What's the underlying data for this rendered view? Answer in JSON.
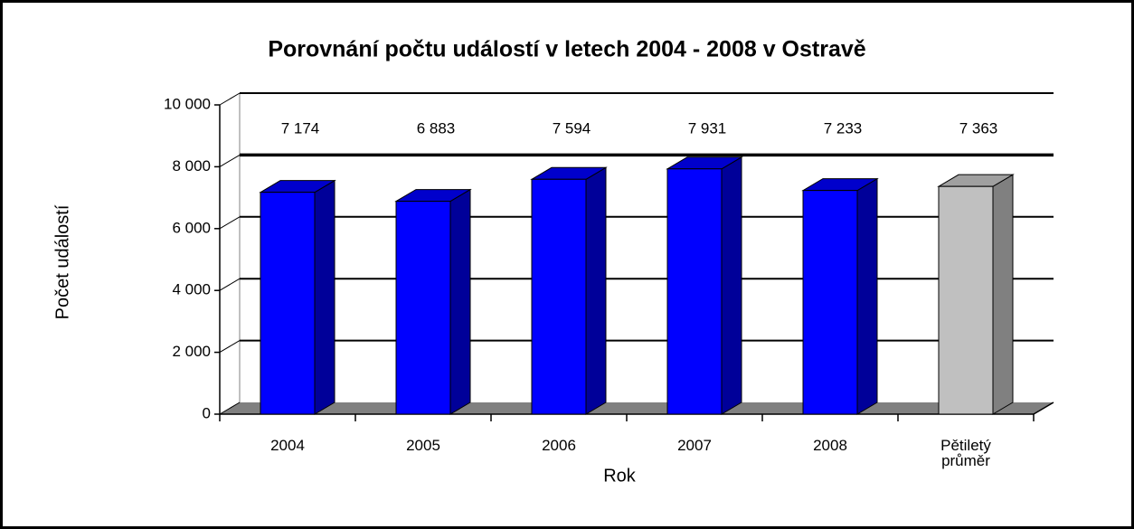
{
  "chart_data": {
    "type": "bar3d",
    "title": "Porovnání počtu událostí v letech 2004 - 2008 v Ostravě",
    "x_label": "Rok",
    "y_label": "Počet událostí",
    "categories": [
      "2004",
      "2005",
      "2006",
      "2007",
      "2008",
      "Pětiletý průměr"
    ],
    "values": [
      7174,
      6883,
      7594,
      7931,
      7233,
      7363
    ],
    "value_labels": [
      "7 174",
      "6 883",
      "7 594",
      "7 931",
      "7 233",
      "7 363"
    ],
    "colors": [
      "#0000ff",
      "#0000ff",
      "#0000ff",
      "#0000ff",
      "#0000ff",
      "#c0c0c0"
    ],
    "ylim": [
      0,
      10000
    ],
    "yticks": [
      0,
      {
        "value": 2000,
        "label": "2 000"
      },
      {
        "value": 4000,
        "label": "4 000"
      },
      {
        "value": 6000,
        "label": "6 000"
      },
      {
        "value": 8000,
        "label": "8 000"
      },
      {
        "value": 10000,
        "label": "10 000"
      }
    ],
    "grid": true
  }
}
